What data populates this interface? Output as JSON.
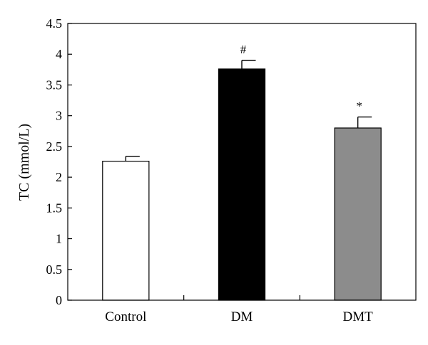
{
  "chart_data": {
    "type": "bar",
    "categories": [
      "Control",
      "DM",
      "DMT"
    ],
    "values": [
      2.26,
      3.76,
      2.8
    ],
    "errors": [
      0.08,
      0.14,
      0.18
    ],
    "annotations": [
      "",
      "#",
      "*"
    ],
    "bar_colors": [
      "#ffffff",
      "#000000",
      "#8c8c8c"
    ],
    "bar_stroke": "#000000",
    "title": "",
    "xlabel": "",
    "ylabel": "TC (mmol/L)",
    "ylim": [
      0,
      4.5
    ],
    "yticks": [
      0,
      0.5,
      1,
      1.5,
      2,
      2.5,
      3,
      3.5,
      4,
      4.5
    ],
    "ytick_labels": [
      "0",
      "0.5",
      "1",
      "1.5",
      "2",
      "2.5",
      "3",
      "3.5",
      "4",
      "4.5"
    ],
    "grid": false,
    "legend": "none"
  }
}
